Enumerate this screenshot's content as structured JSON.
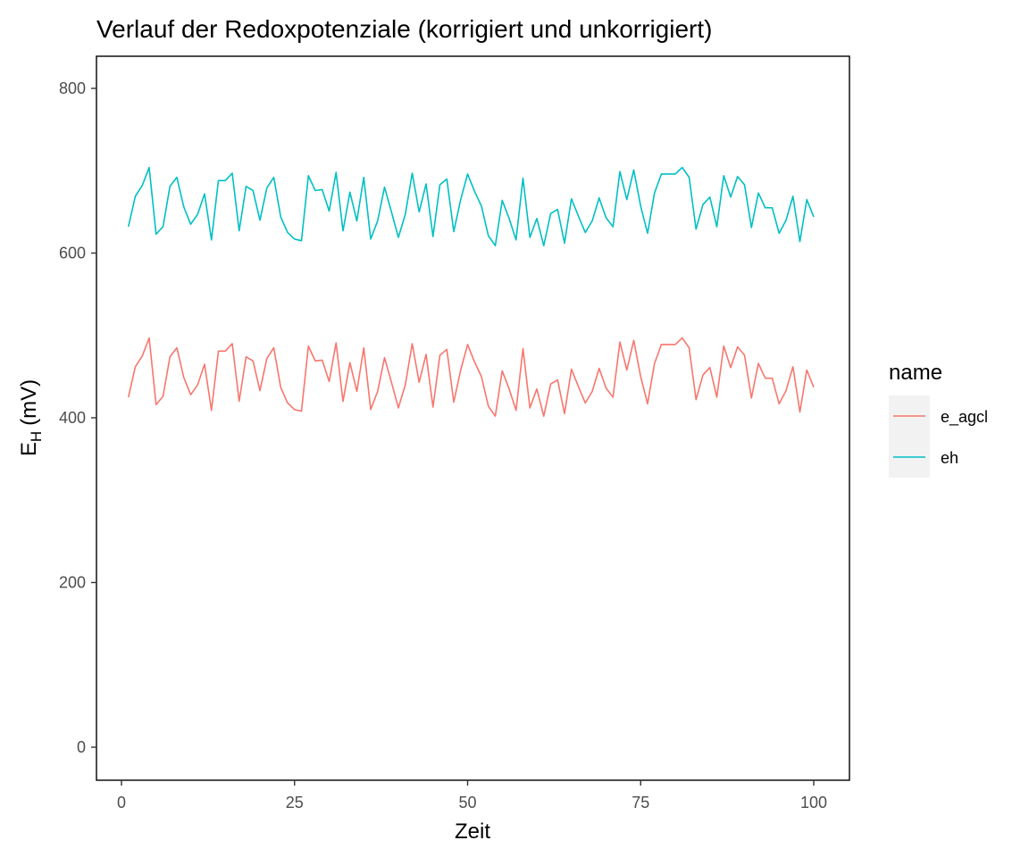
{
  "chart_data": {
    "type": "line",
    "title": "Verlauf der Redoxpotenziale (korrigiert und unkorrigiert)",
    "xlabel": "Zeit",
    "ylabel": {
      "main": "E",
      "subscript": "H",
      "unit": "(mV)"
    },
    "xlim": [
      1,
      100
    ],
    "ylim": [
      0,
      800
    ],
    "xticks": [
      0,
      25,
      50,
      75,
      100
    ],
    "yticks": [
      0,
      200,
      400,
      600,
      800
    ],
    "grid": false,
    "legend": {
      "title": "name",
      "position": "right"
    },
    "series": [
      {
        "name": "e_agcl",
        "color": "#F8766D",
        "values": [
          425,
          462,
          475,
          497,
          416,
          426,
          474,
          485,
          449,
          428,
          440,
          465,
          409,
          481,
          481,
          490,
          420,
          474,
          469,
          433,
          472,
          485,
          437,
          418,
          410,
          408,
          487,
          469,
          470,
          444,
          491,
          420,
          467,
          432,
          485,
          410,
          432,
          473,
          443,
          412,
          440,
          490,
          443,
          477,
          413,
          476,
          483,
          419,
          458,
          489,
          468,
          450,
          414,
          402,
          457,
          435,
          409,
          484,
          412,
          435,
          402,
          441,
          446,
          405,
          459,
          438,
          418,
          432,
          460,
          436,
          425,
          492,
          458,
          494,
          450,
          417,
          466,
          489,
          489,
          489,
          497,
          485,
          422,
          452,
          461,
          425,
          487,
          461,
          486,
          476,
          424,
          466,
          448,
          448,
          417,
          433,
          462,
          407,
          458,
          437
        ]
      },
      {
        "name": "eh",
        "color": "#00BFC4",
        "values": [
          632,
          669,
          682,
          704,
          623,
          632,
          681,
          692,
          656,
          635,
          647,
          672,
          616,
          688,
          688,
          697,
          627,
          681,
          676,
          640,
          679,
          692,
          644,
          625,
          617,
          615,
          694,
          676,
          677,
          651,
          698,
          627,
          674,
          639,
          692,
          617,
          639,
          680,
          650,
          619,
          647,
          697,
          650,
          684,
          620,
          683,
          690,
          626,
          665,
          696,
          675,
          657,
          621,
          609,
          664,
          642,
          616,
          691,
          619,
          642,
          609,
          648,
          653,
          612,
          666,
          645,
          625,
          639,
          667,
          643,
          632,
          699,
          665,
          701,
          657,
          624,
          673,
          696,
          696,
          696,
          704,
          692,
          629,
          659,
          668,
          632,
          694,
          668,
          693,
          683,
          631,
          673,
          655,
          655,
          624,
          640,
          669,
          614,
          665,
          644
        ]
      }
    ]
  }
}
